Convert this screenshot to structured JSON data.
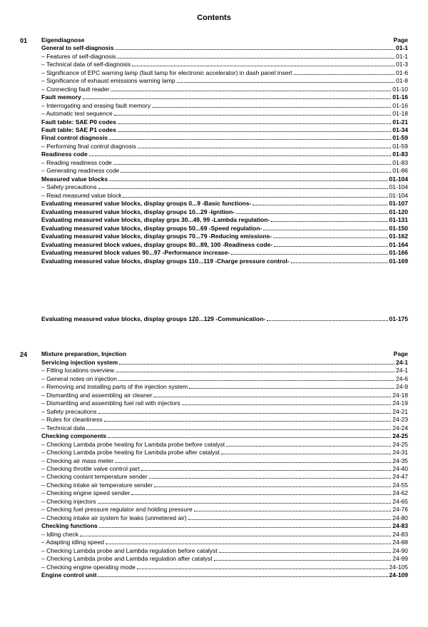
{
  "title": "Contents",
  "sections": [
    {
      "num": "01",
      "heading": "Eigendiagnose",
      "pagelabel": "Page",
      "rows": [
        {
          "t": "b",
          "label": "General to self-diagnosis",
          "pg": "01-1"
        },
        {
          "t": "s",
          "label": "Features of self-diagnosis",
          "pg": "01-1"
        },
        {
          "t": "s",
          "label": "Technical data of self-diagnosis",
          "pg": "01-3"
        },
        {
          "t": "s",
          "label": "Significance of EPC warning lamp (fault lamp for electronic accelerator) in dash panel insert",
          "pg": "01-6"
        },
        {
          "t": "s",
          "label": "Significance of exhaust emissions warning lamp",
          "pg": "01-8"
        },
        {
          "t": "s",
          "label": "Connecting fault reader",
          "pg": "01-10"
        },
        {
          "t": "b",
          "label": "Fault memory",
          "pg": "01-16"
        },
        {
          "t": "s",
          "label": "Interrogating and erasing fault memory",
          "pg": "01-16"
        },
        {
          "t": "s",
          "label": "Automatic test sequence",
          "pg": "01-18"
        },
        {
          "t": "b",
          "label": "Fault table: SAE P0 codes",
          "pg": "01-21"
        },
        {
          "t": "b",
          "label": "Fault table: SAE P1 codes",
          "pg": "01-34"
        },
        {
          "t": "b",
          "label": "Final control diagnosis",
          "pg": "01-59"
        },
        {
          "t": "s",
          "label": "Performing final control diagnosis",
          "pg": "01-59"
        },
        {
          "t": "b",
          "label": "Readiness code",
          "pg": "01-83"
        },
        {
          "t": "s",
          "label": "Reading readiness code",
          "pg": "01-83"
        },
        {
          "t": "s",
          "label": "Generating readiness code",
          "pg": "01-86"
        },
        {
          "t": "b",
          "label": "Measured value blocks",
          "pg": "01-104"
        },
        {
          "t": "s",
          "label": "Safety precautions",
          "pg": "01-104"
        },
        {
          "t": "s",
          "label": "Read measured value block",
          "pg": "01-104"
        },
        {
          "t": "b",
          "label": "Evaluating measured value blocks, display groups 0...9 -Basic functions-",
          "pg": "01-107"
        },
        {
          "t": "b",
          "label": "Evaluating measured value blocks, display groups 10...29 -Ignition-",
          "pg": "01-120"
        },
        {
          "t": "b",
          "label": "Evaluating measured value blocks, display grps 30...49, 99 -Lambda regulation-",
          "pg": "01-131"
        },
        {
          "t": "b",
          "label": "Evaluating measured value blocks, display groups 50...69 -Speed regulation-",
          "pg": "01-150"
        },
        {
          "t": "b",
          "label": "Evaluating measured value blocks, display groups 70...79 -Reducing emissions-",
          "pg": "01-162"
        },
        {
          "t": "b",
          "label": "Evaluating measured block values, display groups 80...89, 100 -Readiness code-",
          "pg": "01-164"
        },
        {
          "t": "b",
          "label": "Evaluating measured block values 90...97 -Performance increase-",
          "pg": "01-166"
        },
        {
          "t": "b",
          "label": "Evaluating measured value blocks, display groups 110...119 -Charge pressure control-",
          "pg": "01-169"
        },
        {
          "t": "gap"
        },
        {
          "t": "b",
          "label": "Evaluating measured value blocks, display groups 120...129 -Communication-",
          "pg": "01-175"
        }
      ]
    },
    {
      "num": "24",
      "heading": "Mixture preparation, Injection",
      "pagelabel": "Page",
      "rows": [
        {
          "t": "b",
          "label": "Servicing injection system",
          "pg": "24-1"
        },
        {
          "t": "s",
          "label": "Fitting locations overview",
          "pg": "24-1"
        },
        {
          "t": "s",
          "label": "General notes on injection",
          "pg": "24-6"
        },
        {
          "t": "s",
          "label": "Removing and installing parts of the injection system",
          "pg": "24-9"
        },
        {
          "t": "s",
          "label": "Dismantling and assembling air cleaner",
          "pg": "24-18"
        },
        {
          "t": "s",
          "label": "Dismantling and assembling fuel rail with injectors",
          "pg": "24-19"
        },
        {
          "t": "s",
          "label": "Safety precautions",
          "pg": "24-21"
        },
        {
          "t": "s",
          "label": "Rules for cleanliness",
          "pg": "24-23"
        },
        {
          "t": "s",
          "label": "Technical data",
          "pg": "24-24"
        },
        {
          "t": "b",
          "label": "Checking components",
          "pg": "24-25"
        },
        {
          "t": "s",
          "label": "Checking Lambda probe heating for Lambda probe before catalyst",
          "pg": "24-25"
        },
        {
          "t": "s",
          "label": "Checking Lambda probe heating for Lambda probe after catalyst",
          "pg": "24-31"
        },
        {
          "t": "s",
          "label": "Checking air mass meter",
          "pg": "24-35"
        },
        {
          "t": "s",
          "label": "Checking throttle valve control part",
          "pg": "24-40"
        },
        {
          "t": "s",
          "label": "Checking coolant temperature sender",
          "pg": "24-47"
        },
        {
          "t": "s",
          "label": "Checking intake air temperature sender",
          "pg": "24-55"
        },
        {
          "t": "s",
          "label": "Checking engine speed sender",
          "pg": "24-62"
        },
        {
          "t": "s",
          "label": "Checking injectors",
          "pg": "24-65"
        },
        {
          "t": "s",
          "label": "Checking fuel pressure regulator and holding pressure",
          "pg": "24-76"
        },
        {
          "t": "s",
          "label": "Checking intake air system for leaks (unmetered air)",
          "pg": "24-80"
        },
        {
          "t": "b",
          "label": "Checking functions",
          "pg": "24-83"
        },
        {
          "t": "s",
          "label": "Idling check",
          "pg": "24-83"
        },
        {
          "t": "s",
          "label": "Adapting idling speed",
          "pg": "24-88"
        },
        {
          "t": "s",
          "label": "Checking Lambda probe and Lambda regulation before catalyst",
          "pg": "24-90"
        },
        {
          "t": "s",
          "label": "Checking Lambda probe and Lambda regulation after catalyst",
          "pg": "24-99"
        },
        {
          "t": "s",
          "label": "Checking engine operating mode",
          "pg": "24-105"
        },
        {
          "t": "b",
          "label": "Engine control unit",
          "pg": "24-109"
        }
      ]
    }
  ]
}
